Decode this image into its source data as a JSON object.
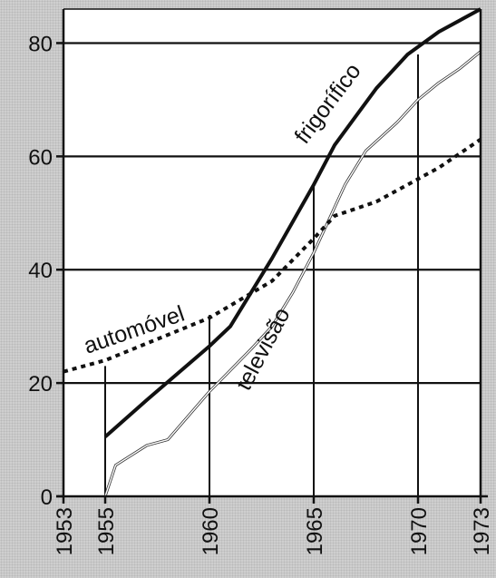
{
  "chart_data": {
    "type": "line",
    "title": "",
    "xlabel": "",
    "ylabel": "",
    "xlim": [
      1953,
      1973
    ],
    "ylim": [
      0,
      86
    ],
    "grid": "horizontal lines at y ticks; vertical drop lines at selected years",
    "legend": "inline labels on series",
    "x_ticks": [
      1953,
      1955,
      1960,
      1965,
      1970,
      1973
    ],
    "y_ticks": [
      0,
      20,
      40,
      60,
      80
    ],
    "vertical_lines": [
      {
        "x": 1955,
        "top": 23
      },
      {
        "x": 1960,
        "top": 32
      },
      {
        "x": 1965,
        "top": 55
      },
      {
        "x": 1970,
        "top": 78
      },
      {
        "x": 1973,
        "top": 86
      }
    ],
    "series": [
      {
        "name": "frigorífico",
        "style": "solid-thick",
        "color": "#111111",
        "points": [
          [
            1955,
            10.5
          ],
          [
            1957,
            17
          ],
          [
            1960,
            26.5
          ],
          [
            1961,
            30
          ],
          [
            1963,
            42
          ],
          [
            1965,
            55
          ],
          [
            1966,
            62
          ],
          [
            1968,
            72
          ],
          [
            1969.5,
            78
          ],
          [
            1971,
            82
          ],
          [
            1973,
            86
          ]
        ]
      },
      {
        "name": "televisão",
        "style": "solid-light",
        "color": "#ffffff",
        "points": [
          [
            1955,
            0
          ],
          [
            1955.5,
            5.5
          ],
          [
            1957,
            9
          ],
          [
            1958,
            10
          ],
          [
            1960,
            18.5
          ],
          [
            1962,
            26
          ],
          [
            1963,
            30
          ],
          [
            1964,
            36
          ],
          [
            1965,
            43
          ],
          [
            1966.5,
            55
          ],
          [
            1967.5,
            61
          ],
          [
            1969,
            66
          ],
          [
            1970,
            70
          ],
          [
            1971,
            73
          ],
          [
            1972,
            75.5
          ],
          [
            1973,
            78.5
          ]
        ]
      },
      {
        "name": "automóvel",
        "style": "dotted",
        "color": "#111111",
        "points": [
          [
            1953,
            22
          ],
          [
            1955,
            24
          ],
          [
            1957,
            27
          ],
          [
            1960,
            31.5
          ],
          [
            1963,
            38
          ],
          [
            1965,
            45.5
          ],
          [
            1966,
            49.5
          ],
          [
            1968,
            52
          ],
          [
            1970,
            56
          ],
          [
            1971,
            58
          ],
          [
            1973,
            63
          ]
        ]
      }
    ]
  }
}
